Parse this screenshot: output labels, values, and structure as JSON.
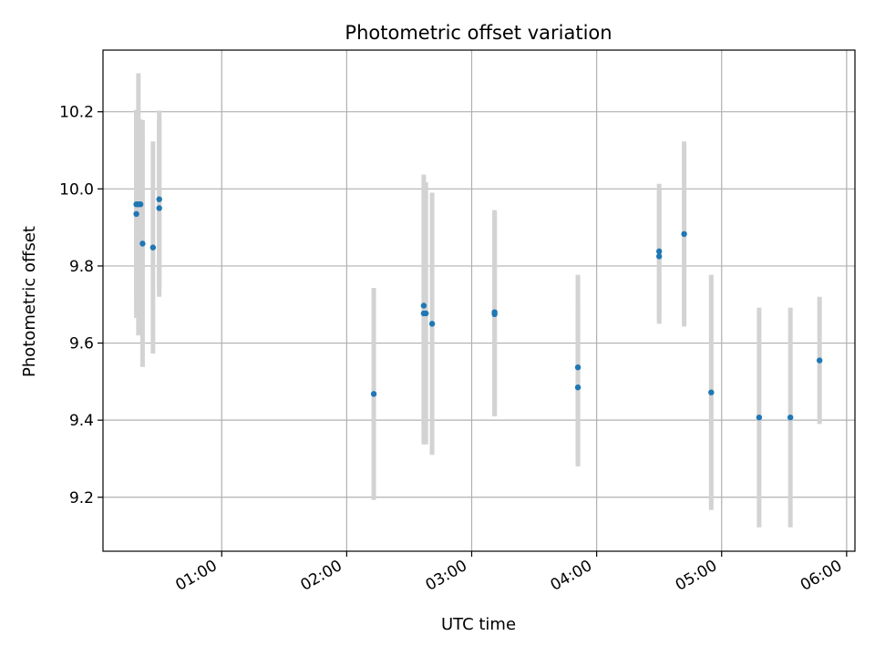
{
  "chart_data": {
    "type": "scatter",
    "title": "Photometric offset variation",
    "xlabel": "UTC time",
    "ylabel": "Photometric offset",
    "x_unit": "UTC time (HH:MM)",
    "xlim": [
      "00:03",
      "06:04"
    ],
    "ylim": [
      9.06,
      10.36
    ],
    "x_ticks": [
      "01:00",
      "02:00",
      "03:00",
      "04:00",
      "05:00",
      "06:00"
    ],
    "y_ticks": [
      9.2,
      9.4,
      9.6,
      9.8,
      10.0,
      10.2
    ],
    "grid": true,
    "marker_color": "#1f77b4",
    "errorbar_color": "#d3d3d3",
    "points": [
      {
        "x": "00:19",
        "y": 9.935,
        "err": 0.27
      },
      {
        "x": "00:19",
        "y": 9.96,
        "err": 0.24
      },
      {
        "x": "00:20",
        "y": 9.96,
        "err": 0.34
      },
      {
        "x": "00:21",
        "y": 9.96,
        "err": 0.22
      },
      {
        "x": "00:22",
        "y": 9.858,
        "err": 0.32
      },
      {
        "x": "00:27",
        "y": 9.848,
        "err": 0.275
      },
      {
        "x": "00:30",
        "y": 9.95,
        "err": 0.23
      },
      {
        "x": "00:30",
        "y": 9.973,
        "err": 0.23
      },
      {
        "x": "02:13",
        "y": 9.468,
        "err": 0.275
      },
      {
        "x": "02:37",
        "y": 9.697,
        "err": 0.34
      },
      {
        "x": "02:37",
        "y": 9.677,
        "err": 0.34
      },
      {
        "x": "02:38",
        "y": 9.677,
        "err": 0.34
      },
      {
        "x": "02:41",
        "y": 9.65,
        "err": 0.34
      },
      {
        "x": "03:11",
        "y": 9.68,
        "err": 0.265
      },
      {
        "x": "03:11",
        "y": 9.675,
        "err": 0.265
      },
      {
        "x": "03:51",
        "y": 9.537,
        "err": 0.24
      },
      {
        "x": "03:51",
        "y": 9.485,
        "err": 0.205
      },
      {
        "x": "04:30",
        "y": 9.838,
        "err": 0.175
      },
      {
        "x": "04:30",
        "y": 9.825,
        "err": 0.175
      },
      {
        "x": "04:42",
        "y": 9.883,
        "err": 0.24
      },
      {
        "x": "04:55",
        "y": 9.472,
        "err": 0.305
      },
      {
        "x": "05:18",
        "y": 9.407,
        "err": 0.285
      },
      {
        "x": "05:33",
        "y": 9.407,
        "err": 0.285
      },
      {
        "x": "05:47",
        "y": 9.555,
        "err": 0.165
      }
    ]
  }
}
